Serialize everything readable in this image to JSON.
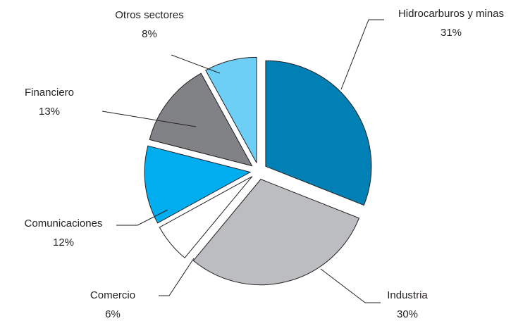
{
  "chart_data": {
    "type": "pie",
    "categories": [
      "Hidrocarburos y minas",
      "Industria",
      "Comercio",
      "Comunicaciones",
      "Financiero",
      "Otros sectores"
    ],
    "values": [
      31,
      30,
      6,
      12,
      13,
      8
    ],
    "value_labels": [
      "31%",
      "30%",
      "6%",
      "12%",
      "13%",
      "8%"
    ],
    "colors": [
      "#0080b4",
      "#bcbdc0",
      "#ffffff",
      "#00aeef",
      "#808285",
      "#6dcff6"
    ]
  }
}
